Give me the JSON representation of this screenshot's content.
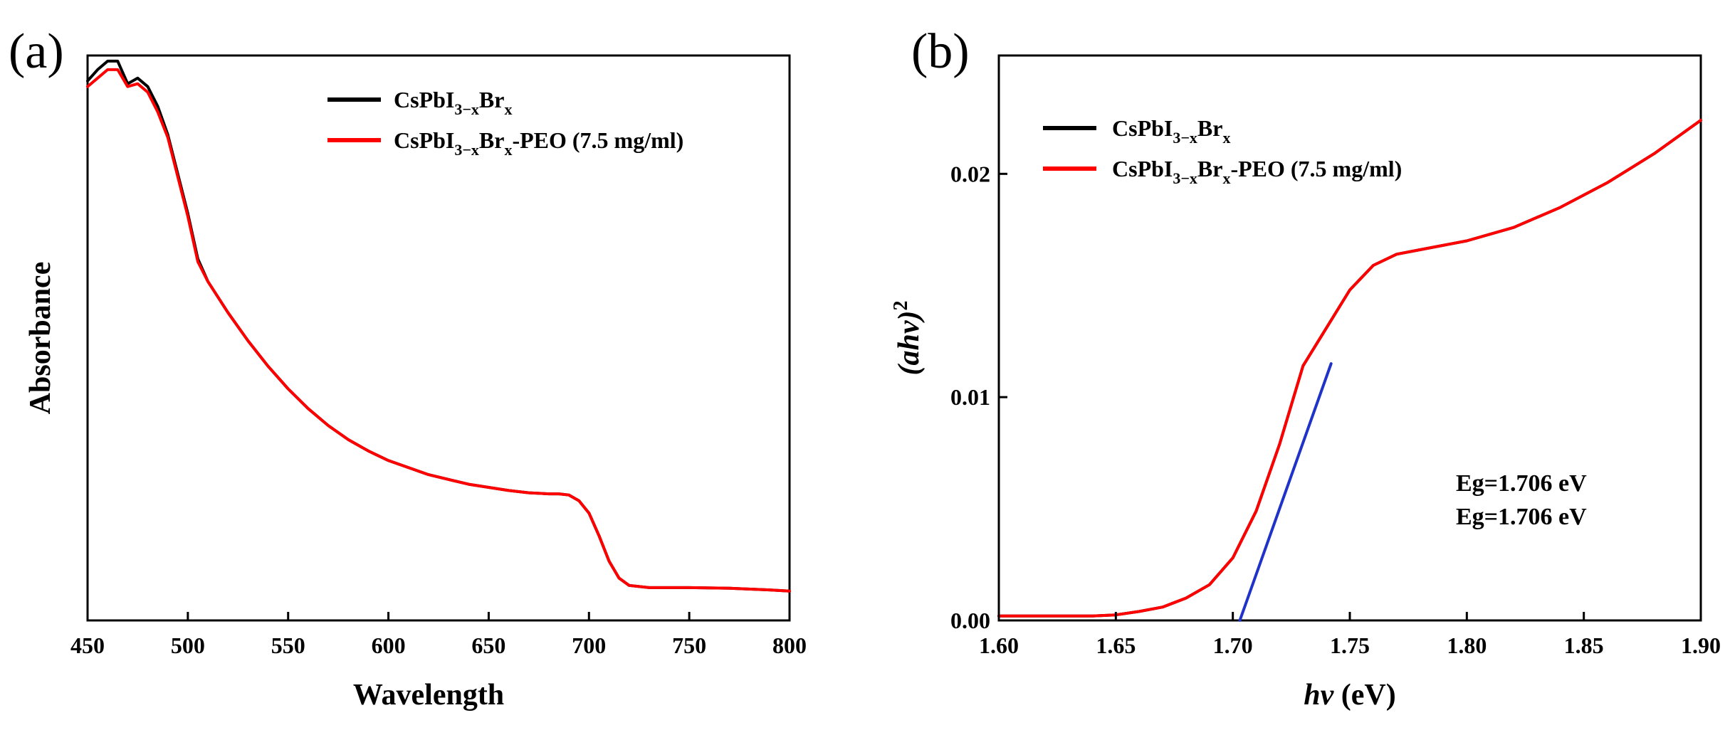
{
  "chart_data": [
    {
      "type": "line",
      "panel": "(a)",
      "xlabel": "Wavelength",
      "ylabel": "Absorbance",
      "xlim": [
        450,
        800
      ],
      "ylim": [
        0,
        1
      ],
      "x_ticks": [
        "450",
        "500",
        "550",
        "600",
        "650",
        "700",
        "750",
        "800"
      ],
      "y_ticks": [],
      "legend": {
        "position": "top-right",
        "entries": [
          {
            "base": "CsPbI",
            "sub1": "3−x",
            "mid": "Br",
            "sub2": "x",
            "suffix": ""
          },
          {
            "base": "CsPbI",
            "sub1": "3−x",
            "mid": "Br",
            "sub2": "x",
            "suffix": "-PEO (7.5 mg/ml)"
          }
        ]
      },
      "series": [
        {
          "name": "CsPbI3-xBrx",
          "color": "#000000",
          "x": [
            450,
            455,
            460,
            465,
            470,
            475,
            480,
            485,
            490,
            495,
            500,
            505,
            510,
            520,
            530,
            540,
            550,
            560,
            570,
            580,
            590,
            600,
            620,
            640,
            660,
            670,
            680,
            685,
            690,
            695,
            700,
            705,
            710,
            715,
            720,
            730,
            750,
            770,
            790,
            800
          ],
          "y": [
            0.955,
            0.975,
            0.99,
            0.99,
            0.95,
            0.96,
            0.945,
            0.91,
            0.86,
            0.79,
            0.72,
            0.64,
            0.6,
            0.545,
            0.495,
            0.45,
            0.41,
            0.375,
            0.345,
            0.32,
            0.3,
            0.283,
            0.258,
            0.241,
            0.23,
            0.226,
            0.224,
            0.224,
            0.222,
            0.212,
            0.19,
            0.15,
            0.105,
            0.075,
            0.062,
            0.058,
            0.058,
            0.057,
            0.054,
            0.052
          ]
        },
        {
          "name": "CsPbI3-xBrx-PEO (7.5 mg/ml)",
          "color": "#ff0000",
          "x": [
            450,
            455,
            460,
            465,
            470,
            475,
            480,
            485,
            490,
            495,
            500,
            505,
            510,
            520,
            530,
            540,
            550,
            560,
            570,
            580,
            590,
            600,
            620,
            640,
            660,
            670,
            680,
            685,
            690,
            695,
            700,
            705,
            710,
            715,
            720,
            730,
            750,
            770,
            790,
            800
          ],
          "y": [
            0.945,
            0.96,
            0.975,
            0.975,
            0.945,
            0.95,
            0.935,
            0.9,
            0.855,
            0.785,
            0.715,
            0.635,
            0.6,
            0.545,
            0.495,
            0.45,
            0.41,
            0.375,
            0.345,
            0.32,
            0.3,
            0.283,
            0.258,
            0.241,
            0.23,
            0.226,
            0.224,
            0.224,
            0.222,
            0.212,
            0.19,
            0.15,
            0.105,
            0.075,
            0.062,
            0.058,
            0.058,
            0.057,
            0.054,
            0.052
          ]
        }
      ]
    },
    {
      "type": "line",
      "panel": "(b)",
      "xlabel_italic": "hv",
      "xlabel_rest": " (eV)",
      "ylabel_italic": "(ahv)",
      "ylabel_sup": "2",
      "xlim": [
        1.6,
        1.9
      ],
      "ylim": [
        0,
        0.0253
      ],
      "x_ticks": [
        "1.60",
        "1.65",
        "1.70",
        "1.75",
        "1.80",
        "1.85",
        "1.90"
      ],
      "y_ticks": [
        "0.00",
        "0.01",
        "0.02"
      ],
      "legend": {
        "position": "top-left",
        "entries": [
          {
            "base": "CsPbI",
            "sub1": "3−x",
            "mid": "Br",
            "sub2": "x",
            "suffix": ""
          },
          {
            "base": "CsPbI",
            "sub1": "3−x",
            "mid": "Br",
            "sub2": "x",
            "suffix": "-PEO (7.5 mg/ml)"
          }
        ]
      },
      "annotations": [
        {
          "text": "Eg=1.706 eV",
          "color": "#000000"
        },
        {
          "text": "Eg=1.706 eV",
          "color": "#ff0000"
        }
      ],
      "series": [
        {
          "name": "CsPbI3-xBrx",
          "color": "#000000",
          "x": [
            1.6,
            1.62,
            1.64,
            1.65,
            1.66,
            1.67,
            1.68,
            1.69,
            1.7,
            1.71,
            1.72,
            1.73,
            1.74,
            1.75,
            1.76,
            1.77,
            1.78,
            1.8,
            1.82,
            1.84,
            1.86,
            1.88,
            1.9
          ],
          "y": [
            0.0002,
            0.0002,
            0.0002,
            0.00025,
            0.0004,
            0.0006,
            0.001,
            0.0016,
            0.0028,
            0.0049,
            0.0079,
            0.0114,
            0.0131,
            0.0148,
            0.0159,
            0.0164,
            0.0166,
            0.017,
            0.0176,
            0.0185,
            0.0196,
            0.0209,
            0.0224
          ]
        },
        {
          "name": "CsPbI3-xBrx-PEO (7.5 mg/ml)",
          "color": "#ff0000",
          "x": [
            1.6,
            1.62,
            1.64,
            1.65,
            1.66,
            1.67,
            1.68,
            1.69,
            1.7,
            1.71,
            1.72,
            1.73,
            1.74,
            1.75,
            1.76,
            1.77,
            1.78,
            1.8,
            1.82,
            1.84,
            1.86,
            1.88,
            1.9
          ],
          "y": [
            0.0002,
            0.0002,
            0.0002,
            0.00025,
            0.0004,
            0.0006,
            0.001,
            0.0016,
            0.0028,
            0.0049,
            0.0079,
            0.0114,
            0.0131,
            0.0148,
            0.0159,
            0.0164,
            0.0166,
            0.017,
            0.0176,
            0.0185,
            0.0196,
            0.0209,
            0.0224
          ]
        },
        {
          "name": "Tangent fit",
          "color": "#1f33c8",
          "x": [
            1.703,
            1.742
          ],
          "y": [
            0.0,
            0.0115
          ]
        }
      ]
    }
  ]
}
